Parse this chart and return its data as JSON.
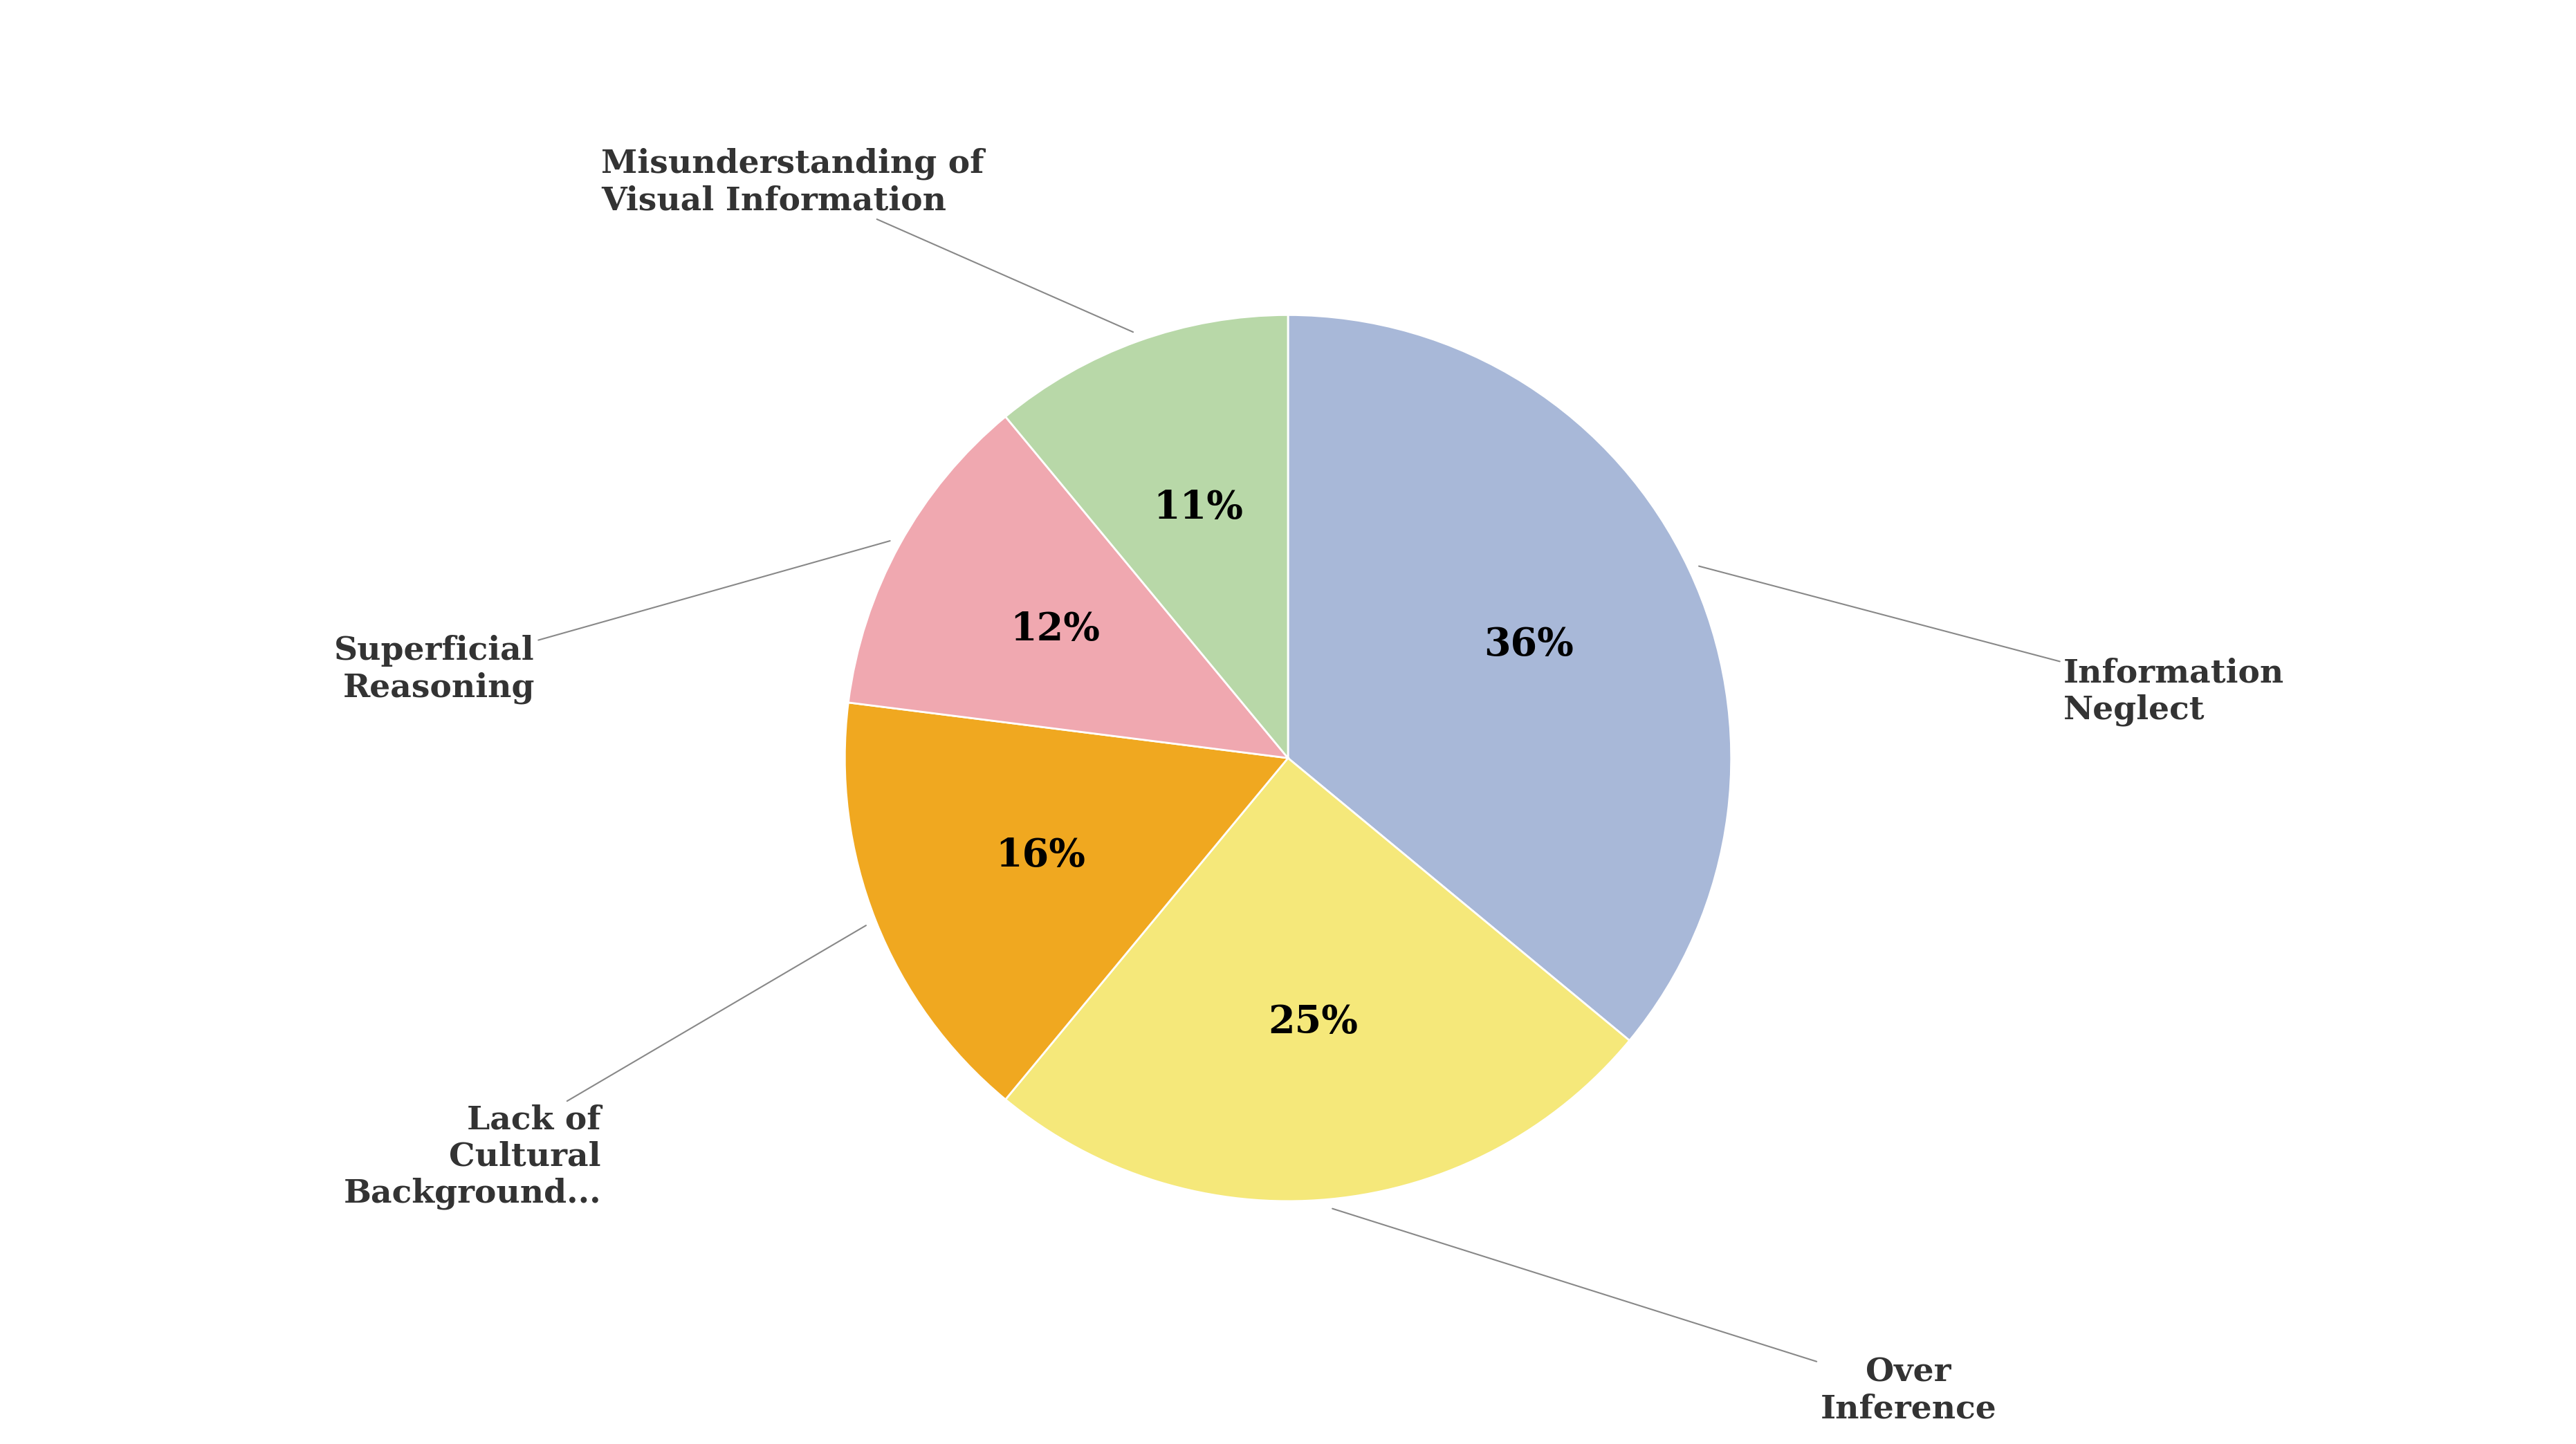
{
  "labels": [
    "Information\nNeglect",
    "Over\nInference",
    "Lack of\nCultural\nBackground...",
    "Superficial\nReasoning",
    "Misunderstanding of\nVisual Information"
  ],
  "values": [
    36,
    25,
    16,
    12,
    11
  ],
  "colors": [
    "#a8b8d8",
    "#f5e87a",
    "#f0a820",
    "#f0a8b0",
    "#b8d8a8"
  ],
  "pct_labels": [
    "36%",
    "25%",
    "16%",
    "12%",
    "11%"
  ],
  "background_color": "#ffffff",
  "startangle": 90,
  "label_fontsize": 34,
  "pct_fontsize": 40
}
